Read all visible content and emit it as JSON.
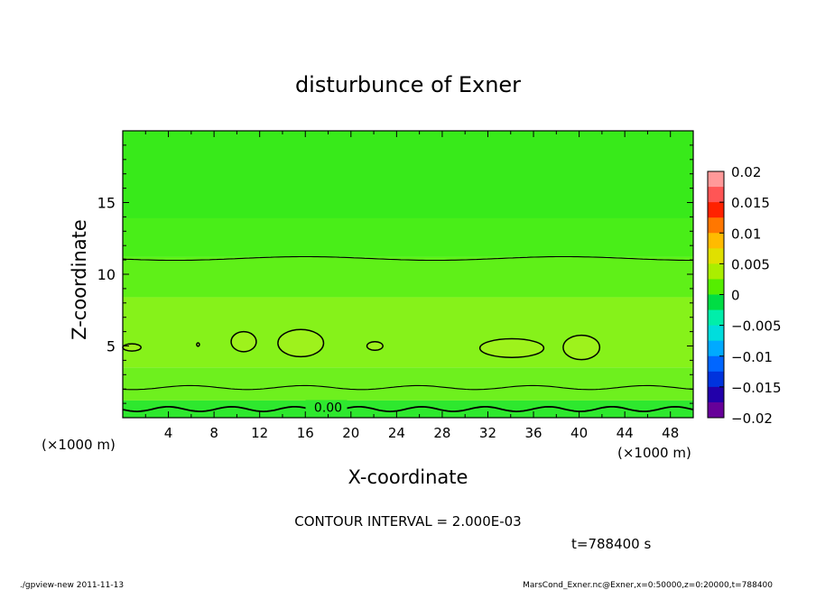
{
  "chart_data": {
    "type": "heatmap",
    "title": "disturbunce of Exner",
    "xlabel": "X-coordinate",
    "ylabel": "Z-coordinate",
    "x_unit_left": "(×1000 m)",
    "x_unit_right": "(×1000 m)",
    "xlim": [
      0,
      50
    ],
    "ylim": [
      0,
      20
    ],
    "x_ticks": [
      4,
      8,
      12,
      16,
      20,
      24,
      28,
      32,
      36,
      40,
      44,
      48
    ],
    "y_ticks": [
      5,
      10,
      15
    ],
    "contour_interval_text": "CONTOUR INTERVAL = 2.000E-03",
    "time_text": "t=788400 s",
    "contour_label": "0.00",
    "colorbar": {
      "range": [
        -0.02,
        0.02
      ],
      "tick_labels": [
        "0.02",
        "0.015",
        "0.01",
        "0.005",
        "0",
        "−0.005",
        "−0.01",
        "−0.015",
        "−0.02"
      ],
      "tick_values": [
        0.02,
        0.015,
        0.01,
        0.005,
        0,
        -0.005,
        -0.01,
        -0.015,
        -0.02
      ],
      "colors": [
        "#ff9999",
        "#ff5555",
        "#ff2200",
        "#ff7700",
        "#ffbb00",
        "#e0e000",
        "#aaee00",
        "#55ee00",
        "#00dd44",
        "#00eeaa",
        "#00dddd",
        "#00aaff",
        "#0066ff",
        "#0033dd",
        "#2200aa",
        "#660099"
      ]
    },
    "bands": [
      {
        "z_bottom": 0.0,
        "z_top": 1.2,
        "value": -0.001,
        "color": "#2ee82e"
      },
      {
        "z_bottom": 1.2,
        "z_top": 3.5,
        "value": 0.0005,
        "color": "#6ef01e"
      },
      {
        "z_bottom": 3.5,
        "z_top": 8.4,
        "value": 0.0025,
        "color": "#86f21a"
      },
      {
        "z_bottom": 8.4,
        "z_top": 11.2,
        "value": 0.0015,
        "color": "#5ff018"
      },
      {
        "z_bottom": 11.2,
        "z_top": 13.9,
        "value": 0.0008,
        "color": "#49ee18"
      },
      {
        "z_bottom": 13.9,
        "z_top": 20.0,
        "value": 0.0003,
        "color": "#38ea1a"
      }
    ],
    "contour_lines": [
      {
        "z_mean": 11.1
      },
      {
        "z_mean": 2.1
      },
      {
        "z_mean": 0.6,
        "label": "0.00"
      }
    ],
    "cells": [
      {
        "x": 0.8,
        "z": 4.9,
        "rx": 0.8,
        "rz": 0.25
      },
      {
        "x": 6.6,
        "z": 5.1,
        "rx": 0.12,
        "rz": 0.12
      },
      {
        "x": 10.6,
        "z": 5.3,
        "rx": 1.1,
        "rz": 0.7
      },
      {
        "x": 15.6,
        "z": 5.2,
        "rx": 2.0,
        "rz": 0.95
      },
      {
        "x": 22.1,
        "z": 5.0,
        "rx": 0.7,
        "rz": 0.3
      },
      {
        "x": 34.1,
        "z": 4.85,
        "rx": 2.8,
        "rz": 0.65
      },
      {
        "x": 40.2,
        "z": 4.9,
        "rx": 1.6,
        "rz": 0.85
      }
    ]
  },
  "footer": {
    "left": "./gpview-new   2011-11-13",
    "right": "MarsCond_Exner.nc@Exner,x=0:50000,z=0:20000,t=788400"
  }
}
